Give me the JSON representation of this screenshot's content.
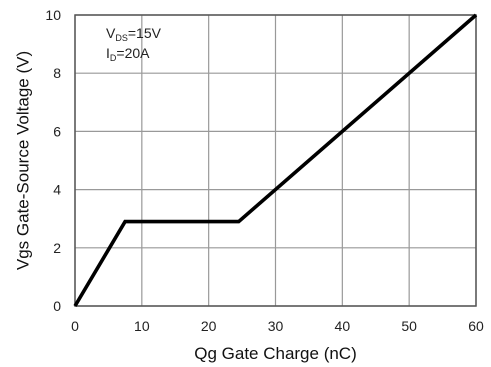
{
  "chart_data": {
    "type": "line",
    "title": "",
    "xlabel": "Qg Gate Charge (nC)",
    "ylabel": "Vgs Gate-Source Voltage (V)",
    "xlim": [
      0,
      60
    ],
    "ylim": [
      0,
      10
    ],
    "x_ticks": [
      "0",
      "10",
      "20",
      "30",
      "40",
      "50",
      "60"
    ],
    "y_ticks": [
      "0",
      "2",
      "4",
      "6",
      "8",
      "10"
    ],
    "grid": true,
    "series": [
      {
        "x": [
          0,
          7.5,
          24.5,
          60
        ],
        "y": [
          0,
          2.9,
          2.9,
          10
        ]
      }
    ],
    "annotations": [
      {
        "main": "V",
        "sub": "DS",
        "rest": "=15V"
      },
      {
        "main": "I",
        "sub": "D",
        "rest": "=20A"
      }
    ],
    "line_color": "#000000",
    "grid_color": "#999999"
  }
}
